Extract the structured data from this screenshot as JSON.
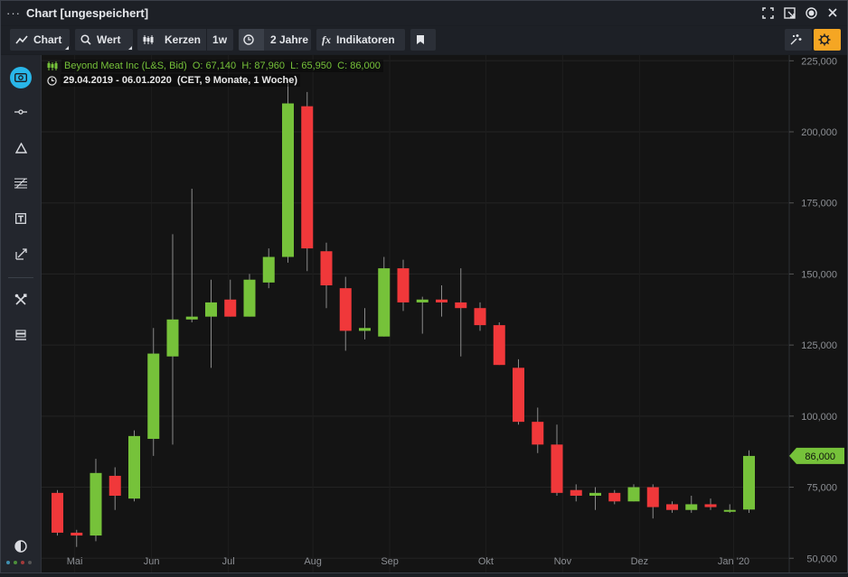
{
  "window": {
    "title": "Chart [ungespeichert]",
    "menu_glyph": "···"
  },
  "toolbar": {
    "chart_label": "Chart",
    "value_label": "Wert",
    "candles_label": "Kerzen",
    "interval_label": "1w",
    "range_label": "2 Jahre",
    "indicators_label": "Indikatoren",
    "indicators_glyph": "fx"
  },
  "legend": {
    "instrument": "Beyond Meat Inc (L&S, Bid)",
    "open": "O: 67,140",
    "high": "H: 87,960",
    "low": "L: 65,950",
    "close": "C: 86,000",
    "period": "29.04.2019 - 06.01.2020",
    "period_info": "(CET, 9 Monate, 1 Woche)"
  },
  "colors": {
    "up": "#76c23a",
    "down": "#f0383a",
    "accent": "#f5a623",
    "active_tool": "#29b6e8",
    "price_tag": "#76c23a"
  },
  "sidebar_icons": [
    "camera-icon",
    "line-tool-icon",
    "triangle-icon",
    "fibonacci-icon",
    "text-tool-icon",
    "arrow-tool-icon",
    "tools-icon",
    "stack-icon",
    "contrast-icon"
  ],
  "chart_data": {
    "type": "candlestick",
    "title": "",
    "ylim": [
      45000,
      227000
    ],
    "y_ticks": [
      "225,000",
      "200,000",
      "175,000",
      "150,000",
      "125,000",
      "100,000",
      "75,000",
      "50,000"
    ],
    "x_ticks": [
      "Mai",
      "Jun",
      "Jul",
      "Aug",
      "Sep",
      "Okt",
      "Nov",
      "Dez",
      "Jan '20"
    ],
    "last_price_label": "86,000",
    "last_price": 86000,
    "grid": true,
    "candles": [
      {
        "o": 73000,
        "h": 74000,
        "l": 58000,
        "c": 59000
      },
      {
        "o": 59000,
        "h": 60000,
        "l": 54000,
        "c": 58000
      },
      {
        "o": 58000,
        "h": 85000,
        "l": 56000,
        "c": 80000
      },
      {
        "o": 79000,
        "h": 82000,
        "l": 67000,
        "c": 72000
      },
      {
        "o": 71000,
        "h": 95000,
        "l": 70000,
        "c": 93000
      },
      {
        "o": 92000,
        "h": 131000,
        "l": 86000,
        "c": 122000
      },
      {
        "o": 121000,
        "h": 164000,
        "l": 90000,
        "c": 134000
      },
      {
        "o": 134000,
        "h": 180000,
        "l": 133000,
        "c": 135000
      },
      {
        "o": 135000,
        "h": 148000,
        "l": 117000,
        "c": 140000
      },
      {
        "o": 141000,
        "h": 148000,
        "l": 135000,
        "c": 135000
      },
      {
        "o": 135000,
        "h": 150000,
        "l": 135000,
        "c": 148000
      },
      {
        "o": 147000,
        "h": 159000,
        "l": 145000,
        "c": 156000
      },
      {
        "o": 156000,
        "h": 217000,
        "l": 154000,
        "c": 210000
      },
      {
        "o": 209000,
        "h": 214000,
        "l": 151000,
        "c": 159000
      },
      {
        "o": 158000,
        "h": 161000,
        "l": 138000,
        "c": 146000
      },
      {
        "o": 145000,
        "h": 149000,
        "l": 123000,
        "c": 130000
      },
      {
        "o": 130000,
        "h": 138000,
        "l": 127000,
        "c": 131000
      },
      {
        "o": 128000,
        "h": 156000,
        "l": 128000,
        "c": 152000
      },
      {
        "o": 152000,
        "h": 155000,
        "l": 137000,
        "c": 140000
      },
      {
        "o": 140000,
        "h": 142000,
        "l": 129000,
        "c": 141000
      },
      {
        "o": 141000,
        "h": 146000,
        "l": 135000,
        "c": 140000
      },
      {
        "o": 140000,
        "h": 152000,
        "l": 121000,
        "c": 138000
      },
      {
        "o": 138000,
        "h": 140000,
        "l": 130000,
        "c": 132000
      },
      {
        "o": 132000,
        "h": 133000,
        "l": 118000,
        "c": 118000
      },
      {
        "o": 117000,
        "h": 120000,
        "l": 97000,
        "c": 98000
      },
      {
        "o": 98000,
        "h": 103000,
        "l": 87000,
        "c": 90000
      },
      {
        "o": 90000,
        "h": 97000,
        "l": 72000,
        "c": 73000
      },
      {
        "o": 74000,
        "h": 76000,
        "l": 70000,
        "c": 72000
      },
      {
        "o": 72000,
        "h": 75000,
        "l": 67000,
        "c": 73000
      },
      {
        "o": 73000,
        "h": 74000,
        "l": 69000,
        "c": 70000
      },
      {
        "o": 70000,
        "h": 76000,
        "l": 70000,
        "c": 75000
      },
      {
        "o": 75000,
        "h": 76000,
        "l": 64000,
        "c": 68000
      },
      {
        "o": 69000,
        "h": 70000,
        "l": 66000,
        "c": 67000
      },
      {
        "o": 67000,
        "h": 72000,
        "l": 66000,
        "c": 69000
      },
      {
        "o": 69000,
        "h": 71000,
        "l": 67000,
        "c": 68000
      },
      {
        "o": 67000,
        "h": 69000,
        "l": 66000,
        "c": 67000
      },
      {
        "o": 67140,
        "h": 87960,
        "l": 65950,
        "c": 86000
      }
    ]
  }
}
